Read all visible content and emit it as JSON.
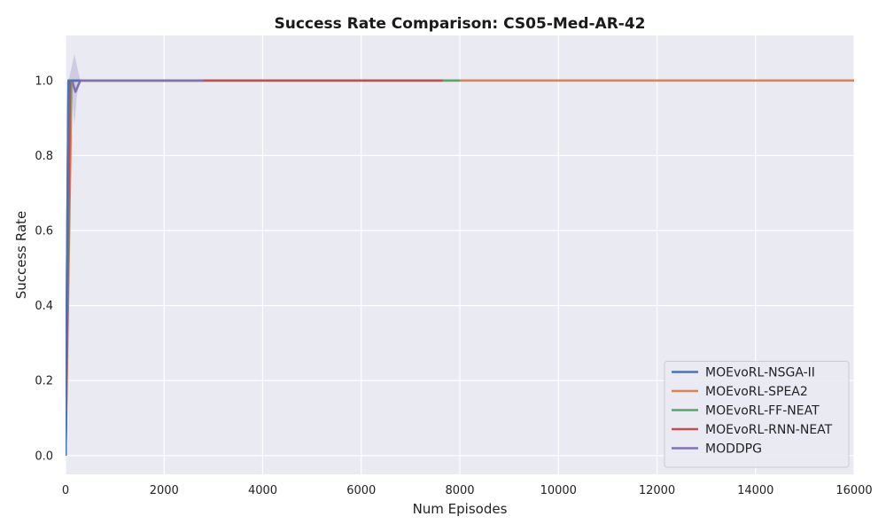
{
  "chart_data": {
    "type": "line",
    "title": "Success Rate Comparison: CS05-Med-AR-42",
    "xlabel": "Num Episodes",
    "ylabel": "Success Rate",
    "xlim": [
      0,
      16000
    ],
    "ylim": [
      -0.05,
      1.12
    ],
    "xticks": [
      0,
      2000,
      4000,
      6000,
      8000,
      10000,
      12000,
      14000,
      16000
    ],
    "xtick_labels": [
      "0",
      "2000",
      "4000",
      "6000",
      "8000",
      "10000",
      "12000",
      "14000",
      "16000"
    ],
    "yticks": [
      0.0,
      0.2,
      0.4,
      0.6,
      0.8,
      1.0
    ],
    "ytick_labels": [
      "0.0",
      "0.2",
      "0.4",
      "0.6",
      "0.8",
      "1.0"
    ],
    "grid": true,
    "legend_position": "bottom-right",
    "background": "#eaeaf2",
    "series": [
      {
        "name": "MOEvoRL-NSGA-II",
        "color": "#4c72b0",
        "x": [
          0,
          60,
          120,
          200,
          300
        ],
        "y": [
          0.0,
          1.0,
          1.0,
          1.0,
          1.0
        ]
      },
      {
        "name": "MOEvoRL-SPEA2",
        "color": "#dd8452",
        "x": [
          0,
          120,
          160,
          250,
          16000
        ],
        "y": [
          0.0,
          0.98,
          1.0,
          1.0,
          1.0
        ]
      },
      {
        "name": "MOEvoRL-FF-NEAT",
        "color": "#55a868",
        "x": [
          0,
          100,
          200,
          8000
        ],
        "y": [
          0.0,
          1.0,
          1.0,
          1.0
        ]
      },
      {
        "name": "MOEvoRL-RNN-NEAT",
        "color": "#c44e52",
        "x": [
          0,
          90,
          200,
          7650
        ],
        "y": [
          0.0,
          1.0,
          1.0,
          1.0
        ]
      },
      {
        "name": "MODDPG",
        "color": "#8172b3",
        "x": [
          0,
          60,
          130,
          200,
          300,
          2800
        ],
        "y": [
          0.0,
          1.0,
          1.0,
          0.97,
          1.0,
          1.0
        ],
        "band": {
          "x": [
            0,
            60,
            130,
            180,
            230,
            300,
            400
          ],
          "lower": [
            0.0,
            1.0,
            0.96,
            0.88,
            0.96,
            1.0,
            1.0
          ],
          "upper": [
            0.0,
            1.0,
            1.04,
            1.07,
            1.04,
            1.0,
            1.0
          ]
        }
      }
    ]
  }
}
